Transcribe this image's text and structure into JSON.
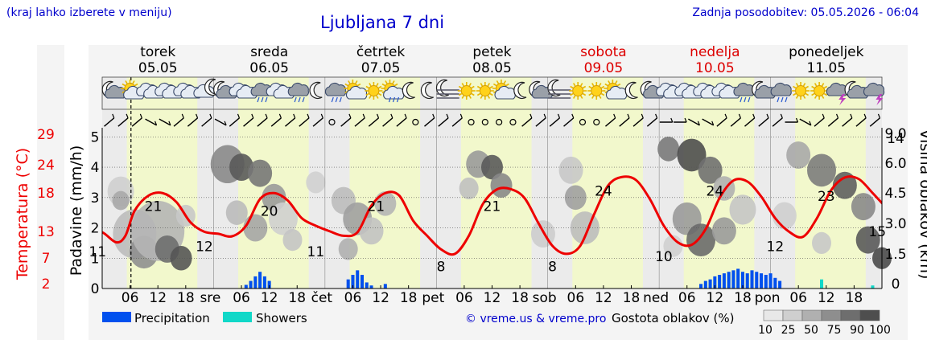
{
  "header": {
    "left_note": "(kraj lahko izberete v meniju)",
    "title": "Ljubljana 7 dni",
    "updated": "Zadnja posodobitev: 05.05.2026 - 06:04"
  },
  "credit": "© vreme.us & vreme.pro",
  "colors": {
    "temperature": "#ee0000",
    "precipitation": "#0050ee",
    "showers": "#10d8c8",
    "daylight": "#f2f8cc",
    "weekend": "#dd0000",
    "text_blue": "#0000cc"
  },
  "chart_data": {
    "type": "line",
    "x_unit": "hours since Tue 05.05.2026 00:00",
    "days": [
      {
        "name": "torek",
        "date": "05.05",
        "short": "",
        "weekend": false
      },
      {
        "name": "sreda",
        "date": "06.05",
        "short": "sre",
        "weekend": false
      },
      {
        "name": "četrtek",
        "date": "07.05",
        "short": "čet",
        "weekend": false
      },
      {
        "name": "petek",
        "date": "08.05",
        "short": "pet",
        "weekend": false
      },
      {
        "name": "sobota",
        "date": "09.05",
        "short": "sob",
        "weekend": true
      },
      {
        "name": "nedelja",
        "date": "10.05",
        "short": "ned",
        "weekend": true
      },
      {
        "name": "ponedeljek",
        "date": "11.05",
        "short": "pon",
        "weekend": false
      }
    ],
    "hour_ticks": [
      "06",
      "12",
      "18"
    ],
    "temperature_axis": {
      "label": "Temperatura (°C)",
      "ticks": [
        2,
        7,
        13,
        18,
        24,
        29
      ],
      "range": [
        2,
        34
      ]
    },
    "precip_axis": {
      "label": "Padavine (mm/h)",
      "ticks": [
        0,
        1,
        2,
        3,
        4,
        5
      ],
      "range": [
        0,
        5.3
      ]
    },
    "cloud_axis": {
      "label": "Višina oblakov (km)",
      "ticks": [
        "0",
        "1.5",
        "3.0",
        "4.5",
        "6.0",
        "9.0",
        "14"
      ]
    },
    "temperature": {
      "name": "Temperatura",
      "x": [
        -3,
        0,
        3,
        5,
        7,
        10,
        13,
        16,
        19,
        22,
        25,
        28,
        31,
        34,
        37,
        40,
        43,
        46,
        49,
        52,
        55,
        58,
        61,
        64,
        67,
        70,
        73,
        76,
        79,
        82,
        85,
        88,
        91,
        94,
        97,
        100,
        103,
        106,
        109,
        112,
        115,
        118,
        121,
        124,
        127,
        130,
        133,
        136,
        139,
        142,
        145,
        148,
        151,
        154,
        157,
        160,
        163,
        166,
        169
      ],
      "values": [
        13.5,
        13.2,
        11.2,
        12.5,
        17.5,
        20.5,
        21.0,
        19.2,
        15.2,
        13.3,
        12.9,
        12.4,
        14.5,
        19.8,
        21.0,
        19.5,
        16.0,
        14.5,
        13.4,
        12.5,
        13.2,
        18.5,
        21.0,
        20.5,
        15.5,
        12.5,
        9.8,
        8.9,
        12.5,
        18.8,
        21.7,
        21.8,
        20.0,
        15.0,
        10.5,
        8.9,
        10.5,
        16.8,
        22.5,
        24.2,
        23.6,
        19.8,
        14.5,
        11.2,
        10.7,
        13.8,
        20.0,
        23.5,
        23.3,
        20.3,
        16.0,
        13.3,
        12.3,
        16.0,
        21.5,
        24.1,
        23.8,
        21.0,
        18.0
      ],
      "labels": [
        {
          "x": -1,
          "value": 11
        },
        {
          "x": 11,
          "value": 21
        },
        {
          "x": 22,
          "value": 12
        },
        {
          "x": 36,
          "value": 20
        },
        {
          "x": 46,
          "value": 11
        },
        {
          "x": 59,
          "value": 21
        },
        {
          "x": 73,
          "value": 8
        },
        {
          "x": 84,
          "value": 21
        },
        {
          "x": 97,
          "value": 8
        },
        {
          "x": 108,
          "value": 24
        },
        {
          "x": 121,
          "value": 10
        },
        {
          "x": 132,
          "value": 24
        },
        {
          "x": 145,
          "value": 12
        },
        {
          "x": 156,
          "value": 23
        },
        {
          "x": 167,
          "value": 15
        }
      ]
    },
    "precipitation": {
      "name": "Precipitation",
      "x": [
        31,
        32,
        33,
        34,
        35,
        36,
        53,
        54,
        55,
        56,
        57,
        58,
        61,
        129,
        130,
        131,
        132,
        133,
        134,
        135,
        136,
        137,
        138,
        139,
        140,
        141,
        142,
        143,
        144,
        145,
        146
      ],
      "values": [
        0.12,
        0.25,
        0.4,
        0.55,
        0.4,
        0.25,
        0.3,
        0.45,
        0.6,
        0.45,
        0.2,
        0.1,
        0.15,
        0.15,
        0.25,
        0.3,
        0.4,
        0.45,
        0.5,
        0.55,
        0.6,
        0.65,
        0.55,
        0.5,
        0.6,
        0.55,
        0.5,
        0.45,
        0.5,
        0.35,
        0.25
      ]
    },
    "showers": {
      "name": "Showers",
      "x": [
        155,
        166
      ],
      "values": [
        0.3,
        0.1
      ]
    },
    "cloud_density": {
      "label": "Gostota oblakov (%)",
      "scale": [
        10,
        25,
        50,
        75,
        90,
        100
      ]
    },
    "legend": [
      "Precipitation",
      "Showers"
    ]
  }
}
